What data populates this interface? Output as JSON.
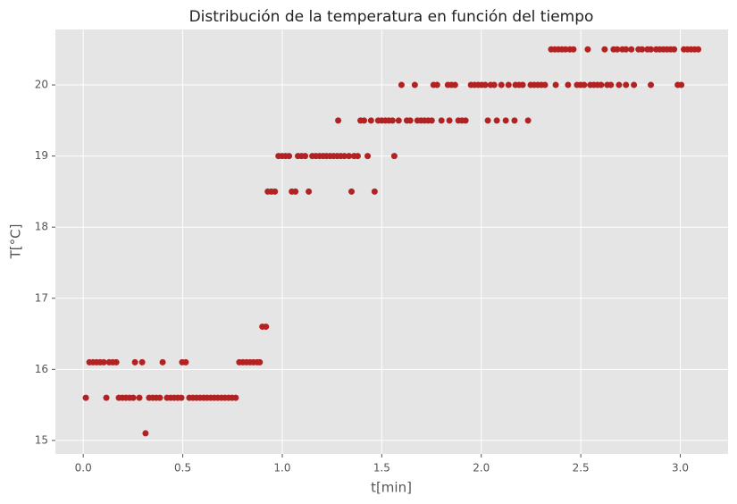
{
  "chart_data": {
    "type": "scatter",
    "title": "Distribución de la temperatura en función del tiempo",
    "x_label": "t[min]",
    "y_label": "T[°C]",
    "color": "#b22222",
    "grid": true,
    "xlim": [
      -0.14,
      3.24
    ],
    "ylim": [
      14.81,
      20.78
    ],
    "xticks": [
      {
        "value": 0,
        "label": "0.0"
      },
      0.5,
      {
        "value": 1,
        "label": "1.0"
      },
      1.5,
      {
        "value": 2,
        "label": "2.0"
      },
      2.5,
      {
        "value": 3,
        "label": "3.0"
      }
    ],
    "yticks": [
      15,
      16,
      17,
      18,
      19,
      20
    ],
    "x": [
      0.013,
      0.116,
      0.179,
      0.197,
      0.215,
      0.233,
      0.251,
      0.282,
      0.331,
      0.349,
      0.367,
      0.385,
      0.421,
      0.439,
      0.457,
      0.475,
      0.493,
      0.533,
      0.551,
      0.569,
      0.587,
      0.605,
      0.622,
      0.64,
      0.658,
      0.676,
      0.694,
      0.712,
      0.73,
      0.748,
      0.766,
      0.031,
      0.049,
      0.067,
      0.085,
      0.103,
      0.13,
      0.148,
      0.166,
      0.26,
      0.296,
      0.399,
      0.497,
      0.515,
      0.784,
      0.802,
      0.82,
      0.838,
      0.855,
      0.873,
      0.887,
      0.313,
      0.9,
      0.918,
      0.927,
      0.945,
      0.963,
      1.048,
      1.066,
      1.133,
      1.348,
      1.464,
      0.981,
      0.999,
      1.016,
      1.034,
      1.079,
      1.097,
      1.115,
      1.151,
      1.169,
      1.187,
      1.205,
      1.222,
      1.24,
      1.258,
      1.276,
      1.294,
      1.312,
      1.335,
      1.361,
      1.379,
      1.429,
      1.563,
      1.281,
      1.393,
      1.411,
      1.446,
      1.482,
      1.5,
      1.518,
      1.536,
      1.554,
      1.585,
      1.626,
      1.643,
      1.679,
      1.697,
      1.715,
      1.733,
      1.751,
      1.8,
      1.84,
      1.885,
      1.903,
      1.921,
      2.033,
      2.078,
      2.123,
      2.167,
      2.235,
      1.599,
      1.666,
      1.76,
      1.778,
      1.832,
      1.85,
      1.868,
      1.948,
      1.966,
      1.984,
      2.002,
      2.02,
      2.047,
      2.065,
      2.101,
      2.137,
      2.172,
      2.19,
      2.208,
      2.248,
      2.266,
      2.284,
      2.302,
      2.32,
      2.374,
      2.436,
      2.481,
      2.499,
      2.517,
      2.548,
      2.566,
      2.584,
      2.602,
      2.633,
      2.651,
      2.692,
      2.727,
      2.767,
      2.852,
      2.987,
      3.005,
      2.351,
      2.369,
      2.387,
      2.405,
      2.423,
      2.445,
      2.463,
      2.535,
      2.62,
      2.665,
      2.683,
      2.709,
      2.727,
      2.754,
      2.79,
      2.808,
      2.835,
      2.852,
      2.879,
      2.897,
      2.915,
      2.933,
      2.951,
      2.969,
      3.018,
      3.036,
      3.054,
      3.072,
      3.09
    ],
    "y": [
      15.6,
      15.6,
      15.6,
      15.6,
      15.6,
      15.6,
      15.6,
      15.6,
      15.6,
      15.6,
      15.6,
      15.6,
      15.6,
      15.6,
      15.6,
      15.6,
      15.6,
      15.6,
      15.6,
      15.6,
      15.6,
      15.6,
      15.6,
      15.6,
      15.6,
      15.6,
      15.6,
      15.6,
      15.6,
      15.6,
      15.6,
      16.1,
      16.1,
      16.1,
      16.1,
      16.1,
      16.1,
      16.1,
      16.1,
      16.1,
      16.1,
      16.1,
      16.1,
      16.1,
      16.1,
      16.1,
      16.1,
      16.1,
      16.1,
      16.1,
      16.1,
      15.1,
      16.6,
      16.6,
      18.5,
      18.5,
      18.5,
      18.5,
      18.5,
      18.5,
      18.5,
      18.5,
      19,
      19,
      19,
      19,
      19,
      19,
      19,
      19,
      19,
      19,
      19,
      19,
      19,
      19,
      19,
      19,
      19,
      19,
      19,
      19,
      19,
      19,
      19.5,
      19.5,
      19.5,
      19.5,
      19.5,
      19.5,
      19.5,
      19.5,
      19.5,
      19.5,
      19.5,
      19.5,
      19.5,
      19.5,
      19.5,
      19.5,
      19.5,
      19.5,
      19.5,
      19.5,
      19.5,
      19.5,
      19.5,
      19.5,
      19.5,
      19.5,
      19.5,
      20,
      20,
      20,
      20,
      20,
      20,
      20,
      20,
      20,
      20,
      20,
      20,
      20,
      20,
      20,
      20,
      20,
      20,
      20,
      20,
      20,
      20,
      20,
      20,
      20,
      20,
      20,
      20,
      20,
      20,
      20,
      20,
      20,
      20,
      20,
      20,
      20,
      20,
      20,
      20,
      20,
      20.5,
      20.5,
      20.5,
      20.5,
      20.5,
      20.5,
      20.5,
      20.5,
      20.5,
      20.5,
      20.5,
      20.5,
      20.5,
      20.5,
      20.5,
      20.5,
      20.5,
      20.5,
      20.5,
      20.5,
      20.5,
      20.5,
      20.5,
      20.5,
      20.5,
      20.5,
      20.5,
      20.5,
      20.5
    ]
  }
}
